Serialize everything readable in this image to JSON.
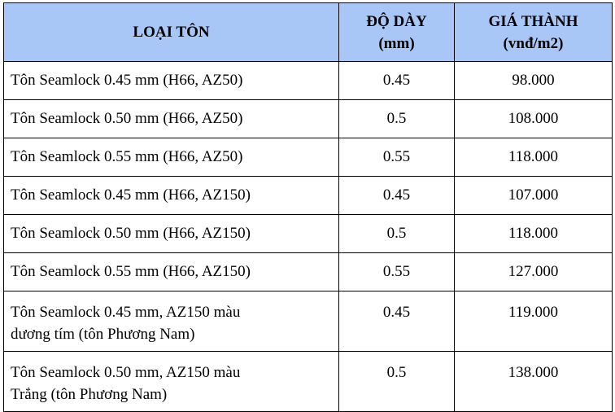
{
  "table": {
    "headers": {
      "type": "LOẠI TÔN",
      "thickness_line1": "ĐỘ DÀY",
      "thickness_line2": "(mm)",
      "price_line1": "GIÁ THÀNH",
      "price_line2": "(vnđ/m2)"
    },
    "rows": [
      {
        "type": "Tôn Seamlock 0.45 mm (H66, AZ50)",
        "thickness": "0.45",
        "price": "98.000"
      },
      {
        "type": "Tôn Seamlock 0.50 mm (H66, AZ50)",
        "thickness": "0.5",
        "price": "108.000"
      },
      {
        "type": "Tôn Seamlock 0.55 mm (H66, AZ50)",
        "thickness": "0.55",
        "price": "118.000"
      },
      {
        "type": "Tôn Seamlock 0.45 mm (H66, AZ150)",
        "thickness": "0.45",
        "price": "107.000"
      },
      {
        "type": "Tôn Seamlock 0.50 mm (H66, AZ150)",
        "thickness": "0.5",
        "price": "118.000"
      },
      {
        "type": "Tôn Seamlock 0.55 mm (H66, AZ150)",
        "thickness": "0.55",
        "price": "127.000"
      },
      {
        "type_line1": "Tôn Seamlock 0.45 mm, AZ150 màu",
        "type_line2": "dương tím (tôn Phương Nam)",
        "thickness": "0.45",
        "price": "119.000"
      },
      {
        "type_line1": "Tôn Seamlock 0.50 mm, AZ150 màu",
        "type_line2": "Trắng (tôn Phương Nam)",
        "thickness": "0.5",
        "price": "138.000"
      }
    ]
  },
  "colors": {
    "header_background": "#a8c6f6",
    "border": "#000000"
  }
}
